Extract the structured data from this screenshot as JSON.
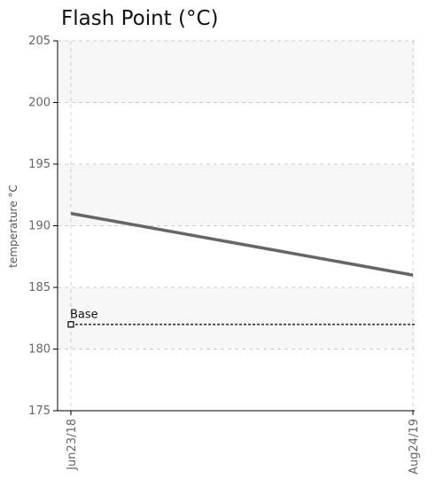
{
  "chart_data": {
    "type": "line",
    "title": "Flash Point (°C)",
    "xlabel": "",
    "ylabel": "temperature °C",
    "x": [
      "Jun23/18",
      "Aug24/19"
    ],
    "ylim": [
      175,
      205
    ],
    "yticks": [
      175,
      180,
      185,
      190,
      195,
      200,
      205
    ],
    "grid": true,
    "series": [
      {
        "values": [
          191,
          186
        ],
        "color": "#666666"
      }
    ],
    "reference_lines": [
      {
        "label": "Base",
        "value": 182,
        "color": "#333333",
        "style": "dotted"
      }
    ],
    "band_color": "#f7f7f7"
  }
}
